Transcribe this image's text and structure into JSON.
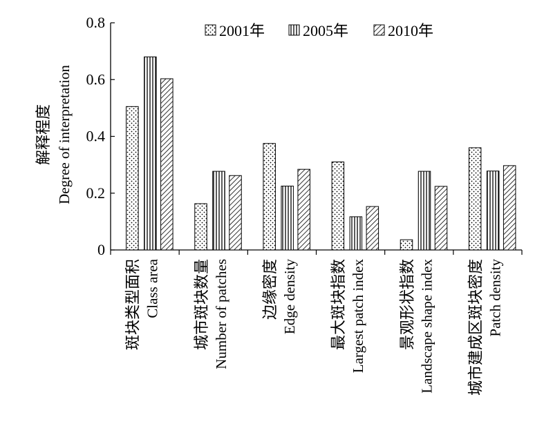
{
  "chart_data": {
    "type": "bar",
    "ylabel_cn": "解释程度",
    "ylabel_en": "Degree of interpretation",
    "ylim": [
      0,
      0.8
    ],
    "yticks": [
      0,
      0.2,
      0.4,
      0.6,
      0.8
    ],
    "ytick_labels": [
      "0",
      "0.2",
      "0.4",
      "0.6",
      "0.8"
    ],
    "legend_position": "top",
    "categories": [
      {
        "cn": "斑块类型面积",
        "en": "Class area"
      },
      {
        "cn": "城市斑块数量",
        "en": "Number of patches"
      },
      {
        "cn": "边缘密度",
        "en": "Edge density"
      },
      {
        "cn": "最大斑块指数",
        "en": "Largest patch index"
      },
      {
        "cn": "景观形状指数",
        "en": "Landscape shape index"
      },
      {
        "cn": "城市建成区斑块密度",
        "en": "Patch density"
      }
    ],
    "series": [
      {
        "name": "2001年",
        "pattern": "dots",
        "values": [
          0.505,
          0.163,
          0.375,
          0.31,
          0.036,
          0.36
        ]
      },
      {
        "name": "2005年",
        "pattern": "vertical-lines",
        "values": [
          0.68,
          0.277,
          0.225,
          0.117,
          0.277,
          0.278
        ]
      },
      {
        "name": "2010年",
        "pattern": "diagonal-lines",
        "values": [
          0.603,
          0.262,
          0.284,
          0.153,
          0.224,
          0.297
        ]
      }
    ]
  }
}
